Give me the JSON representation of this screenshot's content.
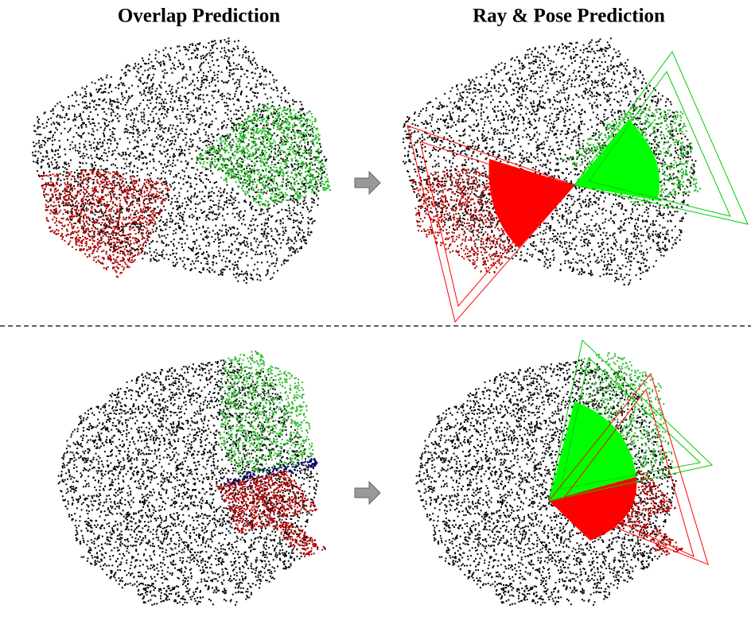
{
  "figure": {
    "columns": [
      "Overlap Prediction",
      "Ray & Pose Prediction"
    ]
  }
}
